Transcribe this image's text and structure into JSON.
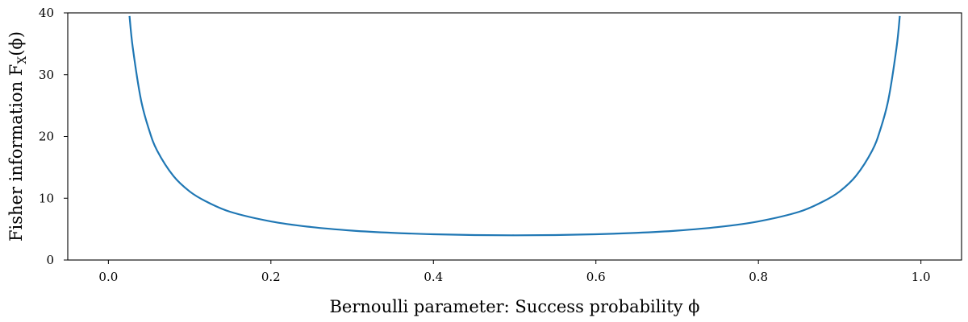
{
  "chart_data": {
    "type": "line",
    "title": "",
    "xlabel": "Bernoulli parameter: Success probability ϕ",
    "ylabel": "Fisher information F",
    "ylabel_sub": "X",
    "ylabel_arg": "(ϕ)",
    "xlim": [
      -0.05,
      1.05
    ],
    "ylim": [
      0,
      40
    ],
    "xticks": [
      0.0,
      0.2,
      0.4,
      0.6,
      0.8,
      1.0
    ],
    "xtick_labels": [
      "0.0",
      "0.2",
      "0.4",
      "0.6",
      "0.8",
      "1.0"
    ],
    "yticks": [
      0,
      10,
      20,
      30,
      40
    ],
    "ytick_labels": [
      "0",
      "10",
      "20",
      "30",
      "40"
    ],
    "grid": false,
    "series": [
      {
        "color": "#1f77b4",
        "x": [
          0.026,
          0.03,
          0.04,
          0.05,
          0.06,
          0.08,
          0.1,
          0.12,
          0.15,
          0.2,
          0.25,
          0.3,
          0.35,
          0.4,
          0.45,
          0.5,
          0.55,
          0.6,
          0.65,
          0.7,
          0.75,
          0.8,
          0.85,
          0.88,
          0.9,
          0.92,
          0.94,
          0.95,
          0.96,
          0.97,
          0.974
        ],
        "y": [
          39.5,
          34.4,
          26.0,
          21.1,
          17.7,
          13.6,
          11.1,
          9.5,
          7.8,
          6.25,
          5.33,
          4.76,
          4.4,
          4.17,
          4.04,
          4.0,
          4.04,
          4.17,
          4.4,
          4.76,
          5.33,
          6.25,
          7.8,
          9.5,
          11.1,
          13.6,
          17.7,
          21.1,
          26.0,
          34.4,
          39.5
        ]
      }
    ]
  }
}
